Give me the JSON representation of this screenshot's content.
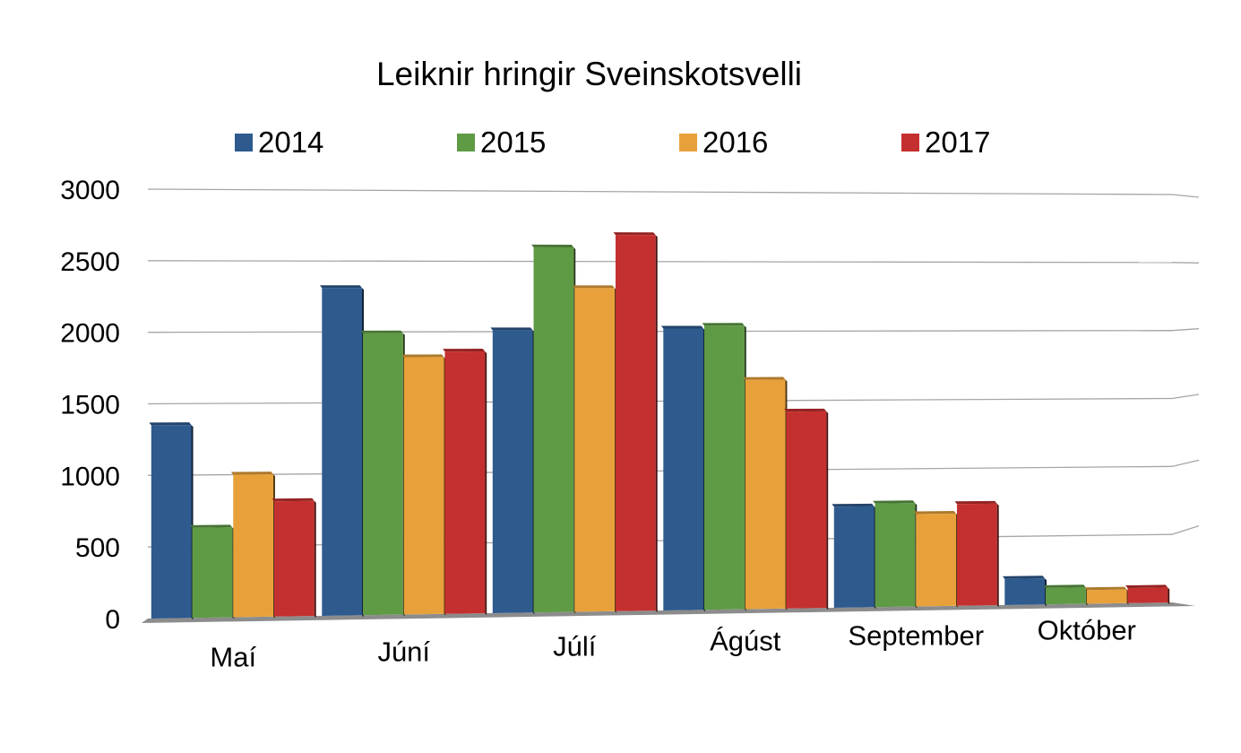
{
  "chart_data": {
    "type": "bar",
    "title": "Leiknir hringir Sveinskotsvelli",
    "xlabel": "",
    "ylabel": "",
    "categories": [
      "Maí",
      "Júní",
      "Júlí",
      "Ágúst",
      "September",
      "Október"
    ],
    "series": [
      {
        "name": "2014",
        "color": "#2e5a8e",
        "values": [
          1350,
          2310,
          2010,
          2020,
          730,
          190
        ]
      },
      {
        "name": "2015",
        "color": "#5f9a45",
        "values": [
          630,
          1990,
          2600,
          2040,
          750,
          120
        ]
      },
      {
        "name": "2016",
        "color": "#e8a13a",
        "values": [
          1000,
          1820,
          2310,
          1650,
          670,
          100
        ]
      },
      {
        "name": "2017",
        "color": "#c4302f",
        "values": [
          810,
          1860,
          2690,
          1420,
          740,
          110
        ]
      }
    ],
    "ylim": [
      0,
      3000
    ],
    "yticks": [
      "0",
      "500",
      "1000",
      "1500",
      "2000",
      "2500",
      "3000"
    ],
    "grid": true,
    "legend_position": "top"
  },
  "colors": {
    "gridline": "#a6a6a6",
    "floor": "#8c8c8c"
  }
}
